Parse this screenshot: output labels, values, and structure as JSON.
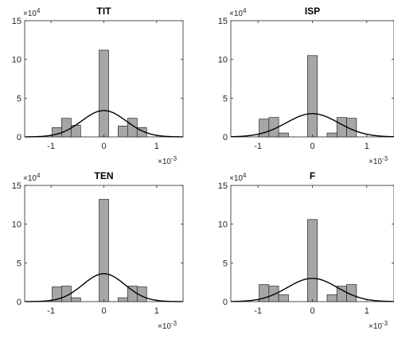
{
  "colors": {
    "bar_fill": "#a6a6a6",
    "bar_stroke": "#262626",
    "curve": "#000000",
    "axis": "#262626",
    "background": "#ffffff"
  },
  "chart_data": [
    {
      "type": "bar",
      "title": "TIT",
      "x_multiplier_label": "×10",
      "x_multiplier_exp": "-3",
      "y_multiplier_label": "×10",
      "y_multiplier_exp": "4",
      "xlim": [
        -0.0015,
        0.0015
      ],
      "ylim": [
        0,
        15
      ],
      "x_ticks": [
        {
          "v": -1,
          "label": "-1"
        },
        {
          "v": 0,
          "label": "0"
        },
        {
          "v": 1,
          "label": "1"
        }
      ],
      "y_ticks": [
        {
          "v": 0,
          "label": "0"
        },
        {
          "v": 5,
          "label": "5"
        },
        {
          "v": 10,
          "label": "10"
        },
        {
          "v": 15,
          "label": "15"
        }
      ],
      "bin_width": 0.00018,
      "bins": [
        {
          "center": -0.00089,
          "value": 1.2
        },
        {
          "center": -0.00071,
          "value": 2.4
        },
        {
          "center": -0.00053,
          "value": 1.5
        },
        {
          "center": 0.0,
          "value": 11.2
        },
        {
          "center": 0.00036,
          "value": 1.4
        },
        {
          "center": 0.00054,
          "value": 2.4
        },
        {
          "center": 0.00072,
          "value": 1.2
        }
      ],
      "curve": {
        "mean": 0.0,
        "sigma": 0.00042,
        "peak": 3.4
      }
    },
    {
      "type": "bar",
      "title": "ISP",
      "x_multiplier_label": "×10",
      "x_multiplier_exp": "-3",
      "y_multiplier_label": "×10",
      "y_multiplier_exp": "4",
      "xlim": [
        -0.0015,
        0.0015
      ],
      "ylim": [
        0,
        15
      ],
      "x_ticks": [
        {
          "v": -1,
          "label": "-1"
        },
        {
          "v": 0,
          "label": "0"
        },
        {
          "v": 1,
          "label": "1"
        }
      ],
      "y_ticks": [
        {
          "v": 0,
          "label": "0"
        },
        {
          "v": 5,
          "label": "5"
        },
        {
          "v": 10,
          "label": "10"
        },
        {
          "v": 15,
          "label": "15"
        }
      ],
      "bin_width": 0.00018,
      "bins": [
        {
          "center": -0.00089,
          "value": 2.3
        },
        {
          "center": -0.00071,
          "value": 2.5
        },
        {
          "center": -0.00053,
          "value": 0.5
        },
        {
          "center": 0.0,
          "value": 10.5
        },
        {
          "center": 0.00036,
          "value": 0.5
        },
        {
          "center": 0.00054,
          "value": 2.5
        },
        {
          "center": 0.00072,
          "value": 2.4
        }
      ],
      "curve": {
        "mean": 0.0,
        "sigma": 0.00048,
        "peak": 3.0
      }
    },
    {
      "type": "bar",
      "title": "TEN",
      "x_multiplier_label": "×10",
      "x_multiplier_exp": "-3",
      "y_multiplier_label": "×10",
      "y_multiplier_exp": "4",
      "xlim": [
        -0.0015,
        0.0015
      ],
      "ylim": [
        0,
        15
      ],
      "x_ticks": [
        {
          "v": -1,
          "label": "-1"
        },
        {
          "v": 0,
          "label": "0"
        },
        {
          "v": 1,
          "label": "1"
        }
      ],
      "y_ticks": [
        {
          "v": 0,
          "label": "0"
        },
        {
          "v": 5,
          "label": "5"
        },
        {
          "v": 10,
          "label": "10"
        },
        {
          "v": 15,
          "label": "15"
        }
      ],
      "bin_width": 0.00018,
      "bins": [
        {
          "center": -0.00089,
          "value": 1.9
        },
        {
          "center": -0.00071,
          "value": 2.0
        },
        {
          "center": -0.00053,
          "value": 0.5
        },
        {
          "center": 0.0,
          "value": 13.2
        },
        {
          "center": 0.00036,
          "value": 0.5
        },
        {
          "center": 0.00054,
          "value": 2.0
        },
        {
          "center": 0.00072,
          "value": 1.9
        }
      ],
      "curve": {
        "mean": 0.0,
        "sigma": 0.0004,
        "peak": 3.6
      }
    },
    {
      "type": "bar",
      "title": "F",
      "x_multiplier_label": "×10",
      "x_multiplier_exp": "-3",
      "y_multiplier_label": "×10",
      "y_multiplier_exp": "4",
      "xlim": [
        -0.0015,
        0.0015
      ],
      "ylim": [
        0,
        15
      ],
      "x_ticks": [
        {
          "v": -1,
          "label": "-1"
        },
        {
          "v": 0,
          "label": "0"
        },
        {
          "v": 1,
          "label": "1"
        }
      ],
      "y_ticks": [
        {
          "v": 0,
          "label": "0"
        },
        {
          "v": 5,
          "label": "5"
        },
        {
          "v": 10,
          "label": "10"
        },
        {
          "v": 15,
          "label": "15"
        }
      ],
      "bin_width": 0.00018,
      "bins": [
        {
          "center": -0.00089,
          "value": 2.2
        },
        {
          "center": -0.00071,
          "value": 2.0
        },
        {
          "center": -0.00053,
          "value": 0.9
        },
        {
          "center": 0.0,
          "value": 10.6
        },
        {
          "center": 0.00036,
          "value": 0.9
        },
        {
          "center": 0.00054,
          "value": 2.0
        },
        {
          "center": 0.00072,
          "value": 2.2
        }
      ],
      "curve": {
        "mean": 0.0,
        "sigma": 0.00046,
        "peak": 3.0
      }
    }
  ]
}
